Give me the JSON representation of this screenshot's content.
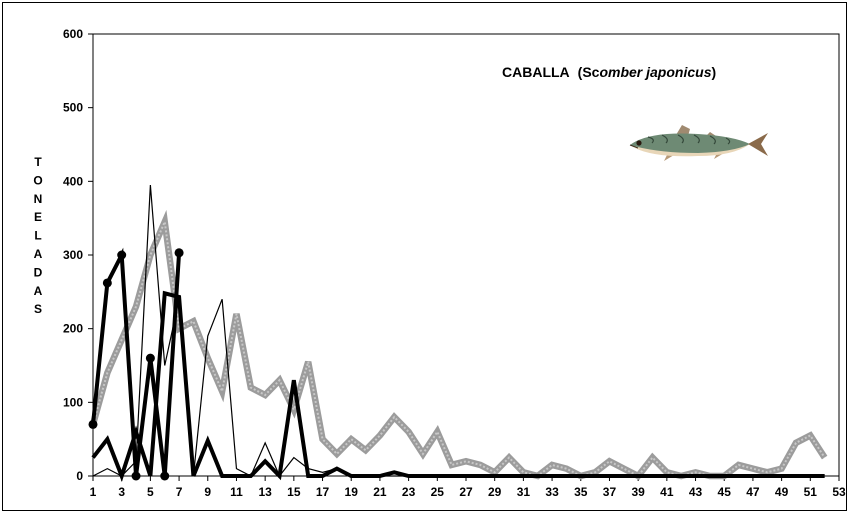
{
  "chart_data": {
    "type": "line",
    "title": "CABALLA",
    "title_species_plain": "(Sc",
    "title_species_italic": "omber japonicus",
    "title_close": ")",
    "ylabel": "TONELADAS",
    "xlabel": "",
    "ylim": [
      0,
      600
    ],
    "xlim": [
      1,
      53
    ],
    "yticks": [
      0,
      100,
      200,
      300,
      400,
      500,
      600
    ],
    "xticks": [
      1,
      3,
      5,
      7,
      9,
      11,
      13,
      15,
      17,
      19,
      21,
      23,
      25,
      27,
      29,
      31,
      33,
      35,
      37,
      39,
      41,
      43,
      45,
      47,
      49,
      51,
      53
    ],
    "grid": false,
    "legend": "none",
    "x": [
      1,
      2,
      3,
      4,
      5,
      6,
      7,
      8,
      9,
      10,
      11,
      12,
      13,
      14,
      15,
      16,
      17,
      18,
      19,
      20,
      21,
      22,
      23,
      24,
      25,
      26,
      27,
      28,
      29,
      30,
      31,
      32,
      33,
      34,
      35,
      36,
      37,
      38,
      39,
      40,
      41,
      42,
      43,
      44,
      45,
      46,
      47,
      48,
      49,
      50,
      51,
      52
    ],
    "series": [
      {
        "style": "gray-thick",
        "color": "#9a9a9a",
        "values": [
          70,
          140,
          185,
          230,
          300,
          345,
          200,
          210,
          160,
          115,
          220,
          120,
          110,
          130,
          90,
          155,
          50,
          30,
          50,
          35,
          55,
          80,
          60,
          30,
          60,
          15,
          20,
          15,
          5,
          25,
          5,
          0,
          15,
          10,
          0,
          5,
          20,
          10,
          0,
          25,
          5,
          0,
          5,
          0,
          0,
          15,
          10,
          5,
          10,
          45,
          55,
          25
        ]
      },
      {
        "style": "black-thin",
        "color": "#000000",
        "values": [
          0,
          10,
          0,
          20,
          395,
          150,
          240,
          0,
          190,
          240,
          10,
          0,
          45,
          0,
          25,
          10,
          5,
          10,
          0,
          0,
          0,
          0,
          0,
          0,
          0,
          0,
          0,
          0,
          0,
          0,
          0,
          0,
          0,
          0,
          0,
          0,
          0,
          0,
          0,
          0,
          0,
          0,
          0,
          0,
          0,
          0,
          0,
          0,
          0,
          0,
          0,
          0
        ]
      },
      {
        "style": "black-thick",
        "color": "#000000",
        "values": [
          25,
          50,
          0,
          60,
          0,
          248,
          243,
          0,
          48,
          0,
          0,
          0,
          20,
          0,
          130,
          0,
          0,
          10,
          0,
          0,
          0,
          5,
          0,
          0,
          0,
          0,
          0,
          0,
          0,
          0,
          0,
          0,
          0,
          0,
          0,
          0,
          0,
          0,
          0,
          0,
          0,
          0,
          0,
          0,
          0,
          0,
          0,
          0,
          0,
          0,
          0,
          0
        ]
      },
      {
        "style": "black-thick-markers",
        "color": "#000000",
        "x": [
          1,
          2,
          3,
          4,
          5,
          6,
          7
        ],
        "values": [
          70,
          262,
          300,
          0,
          160,
          0,
          303
        ]
      }
    ]
  },
  "decoration": {
    "fish_icon": "mackerel-illustration"
  }
}
